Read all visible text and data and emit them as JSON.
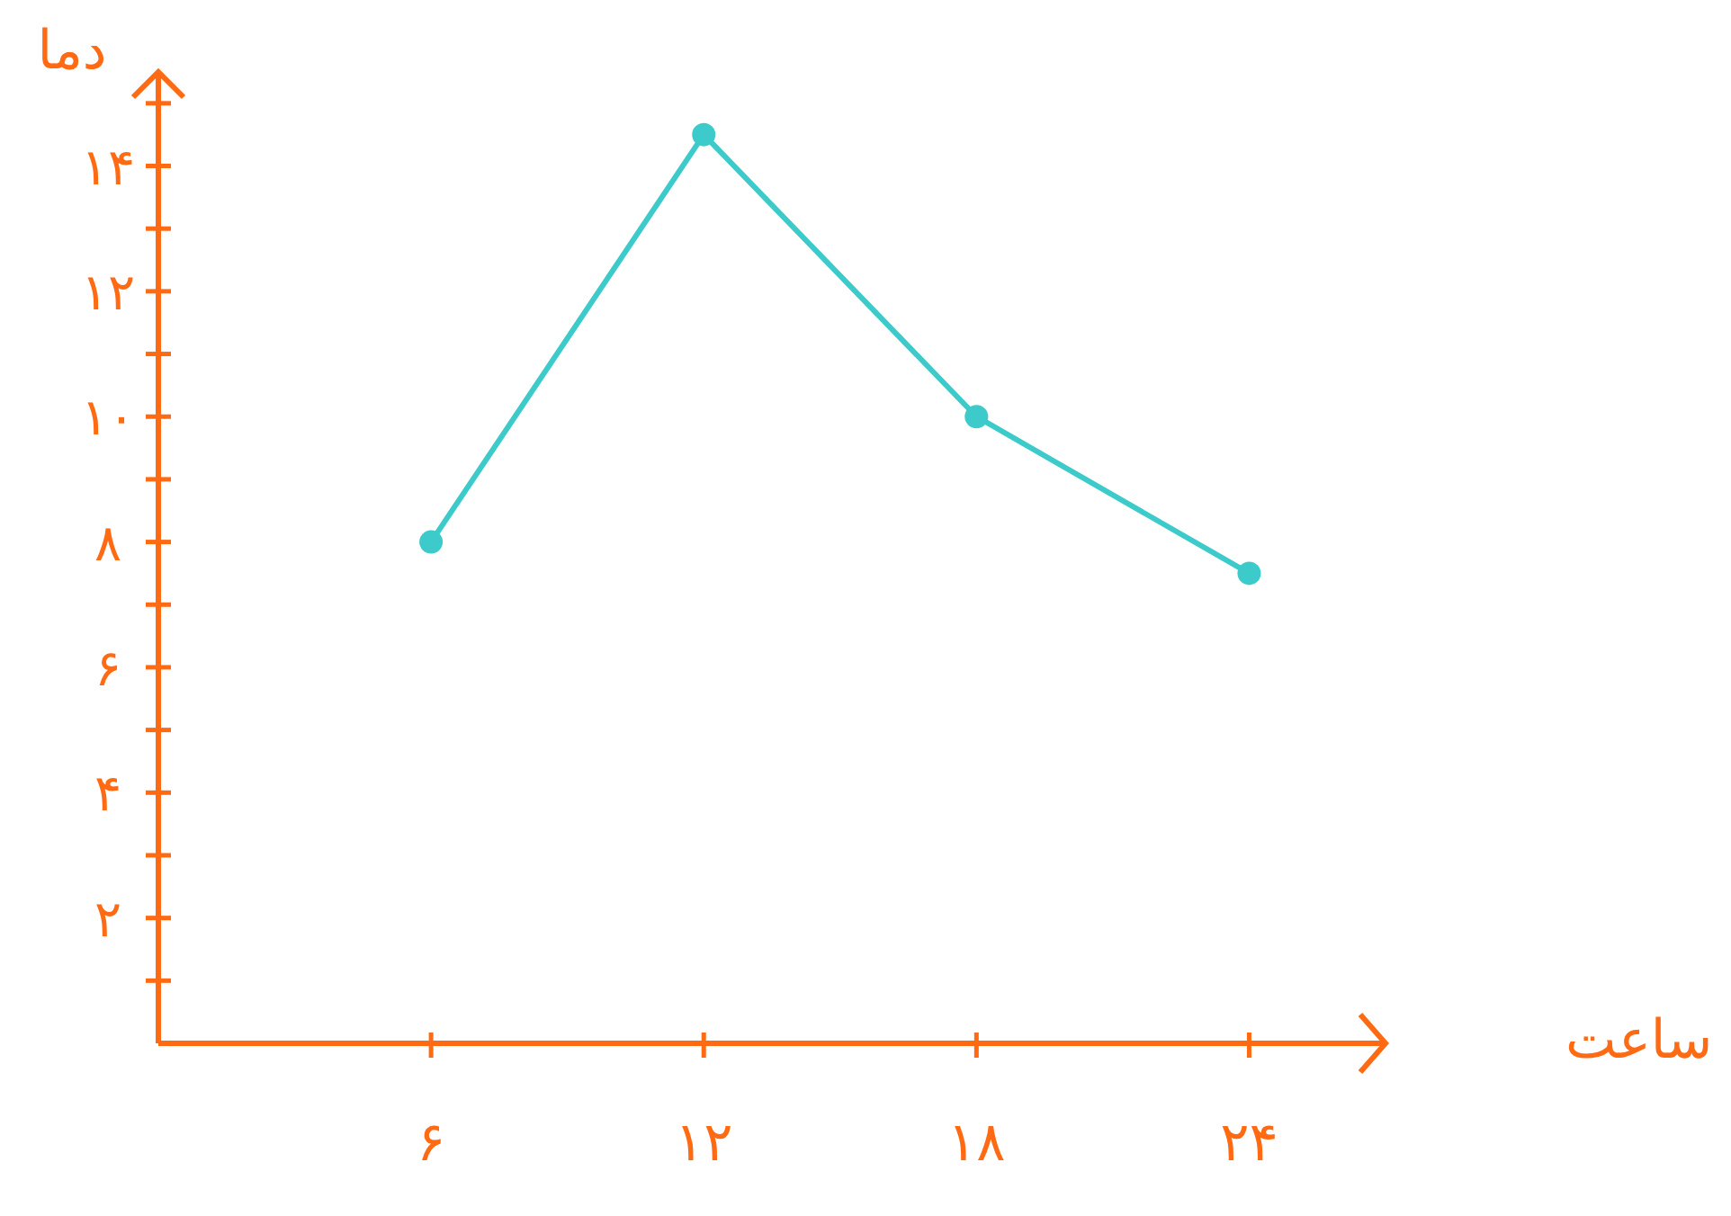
{
  "chart_data": {
    "type": "line",
    "xlabel": "ساعت",
    "ylabel": "دما",
    "x": [
      6,
      12,
      18,
      24
    ],
    "series": [
      {
        "color": "#3ccaca",
        "values": [
          8,
          14.5,
          10,
          7.5
        ]
      }
    ],
    "xlim": [
      0,
      27
    ],
    "ylim": [
      0,
      15.5
    ],
    "xticks": [
      {
        "value": 6,
        "label": "۶"
      },
      {
        "value": 12,
        "label": "۱۲"
      },
      {
        "value": 18,
        "label": "۱۸"
      },
      {
        "value": 24,
        "label": "۲۴"
      }
    ],
    "yticks": [
      {
        "value": 1,
        "label": null
      },
      {
        "value": 2,
        "label": "۲"
      },
      {
        "value": 3,
        "label": null
      },
      {
        "value": 4,
        "label": "۴"
      },
      {
        "value": 5,
        "label": null
      },
      {
        "value": 6,
        "label": "۶"
      },
      {
        "value": 7,
        "label": null
      },
      {
        "value": 8,
        "label": "۸"
      },
      {
        "value": 9,
        "label": null
      },
      {
        "value": 10,
        "label": "۱۰"
      },
      {
        "value": 11,
        "label": null
      },
      {
        "value": 12,
        "label": "۱۲"
      },
      {
        "value": 13,
        "label": null
      },
      {
        "value": 14,
        "label": "۱۴"
      },
      {
        "value": 15,
        "label": null
      }
    ],
    "marker": "circle",
    "line_style": "solid",
    "grid": false
  }
}
